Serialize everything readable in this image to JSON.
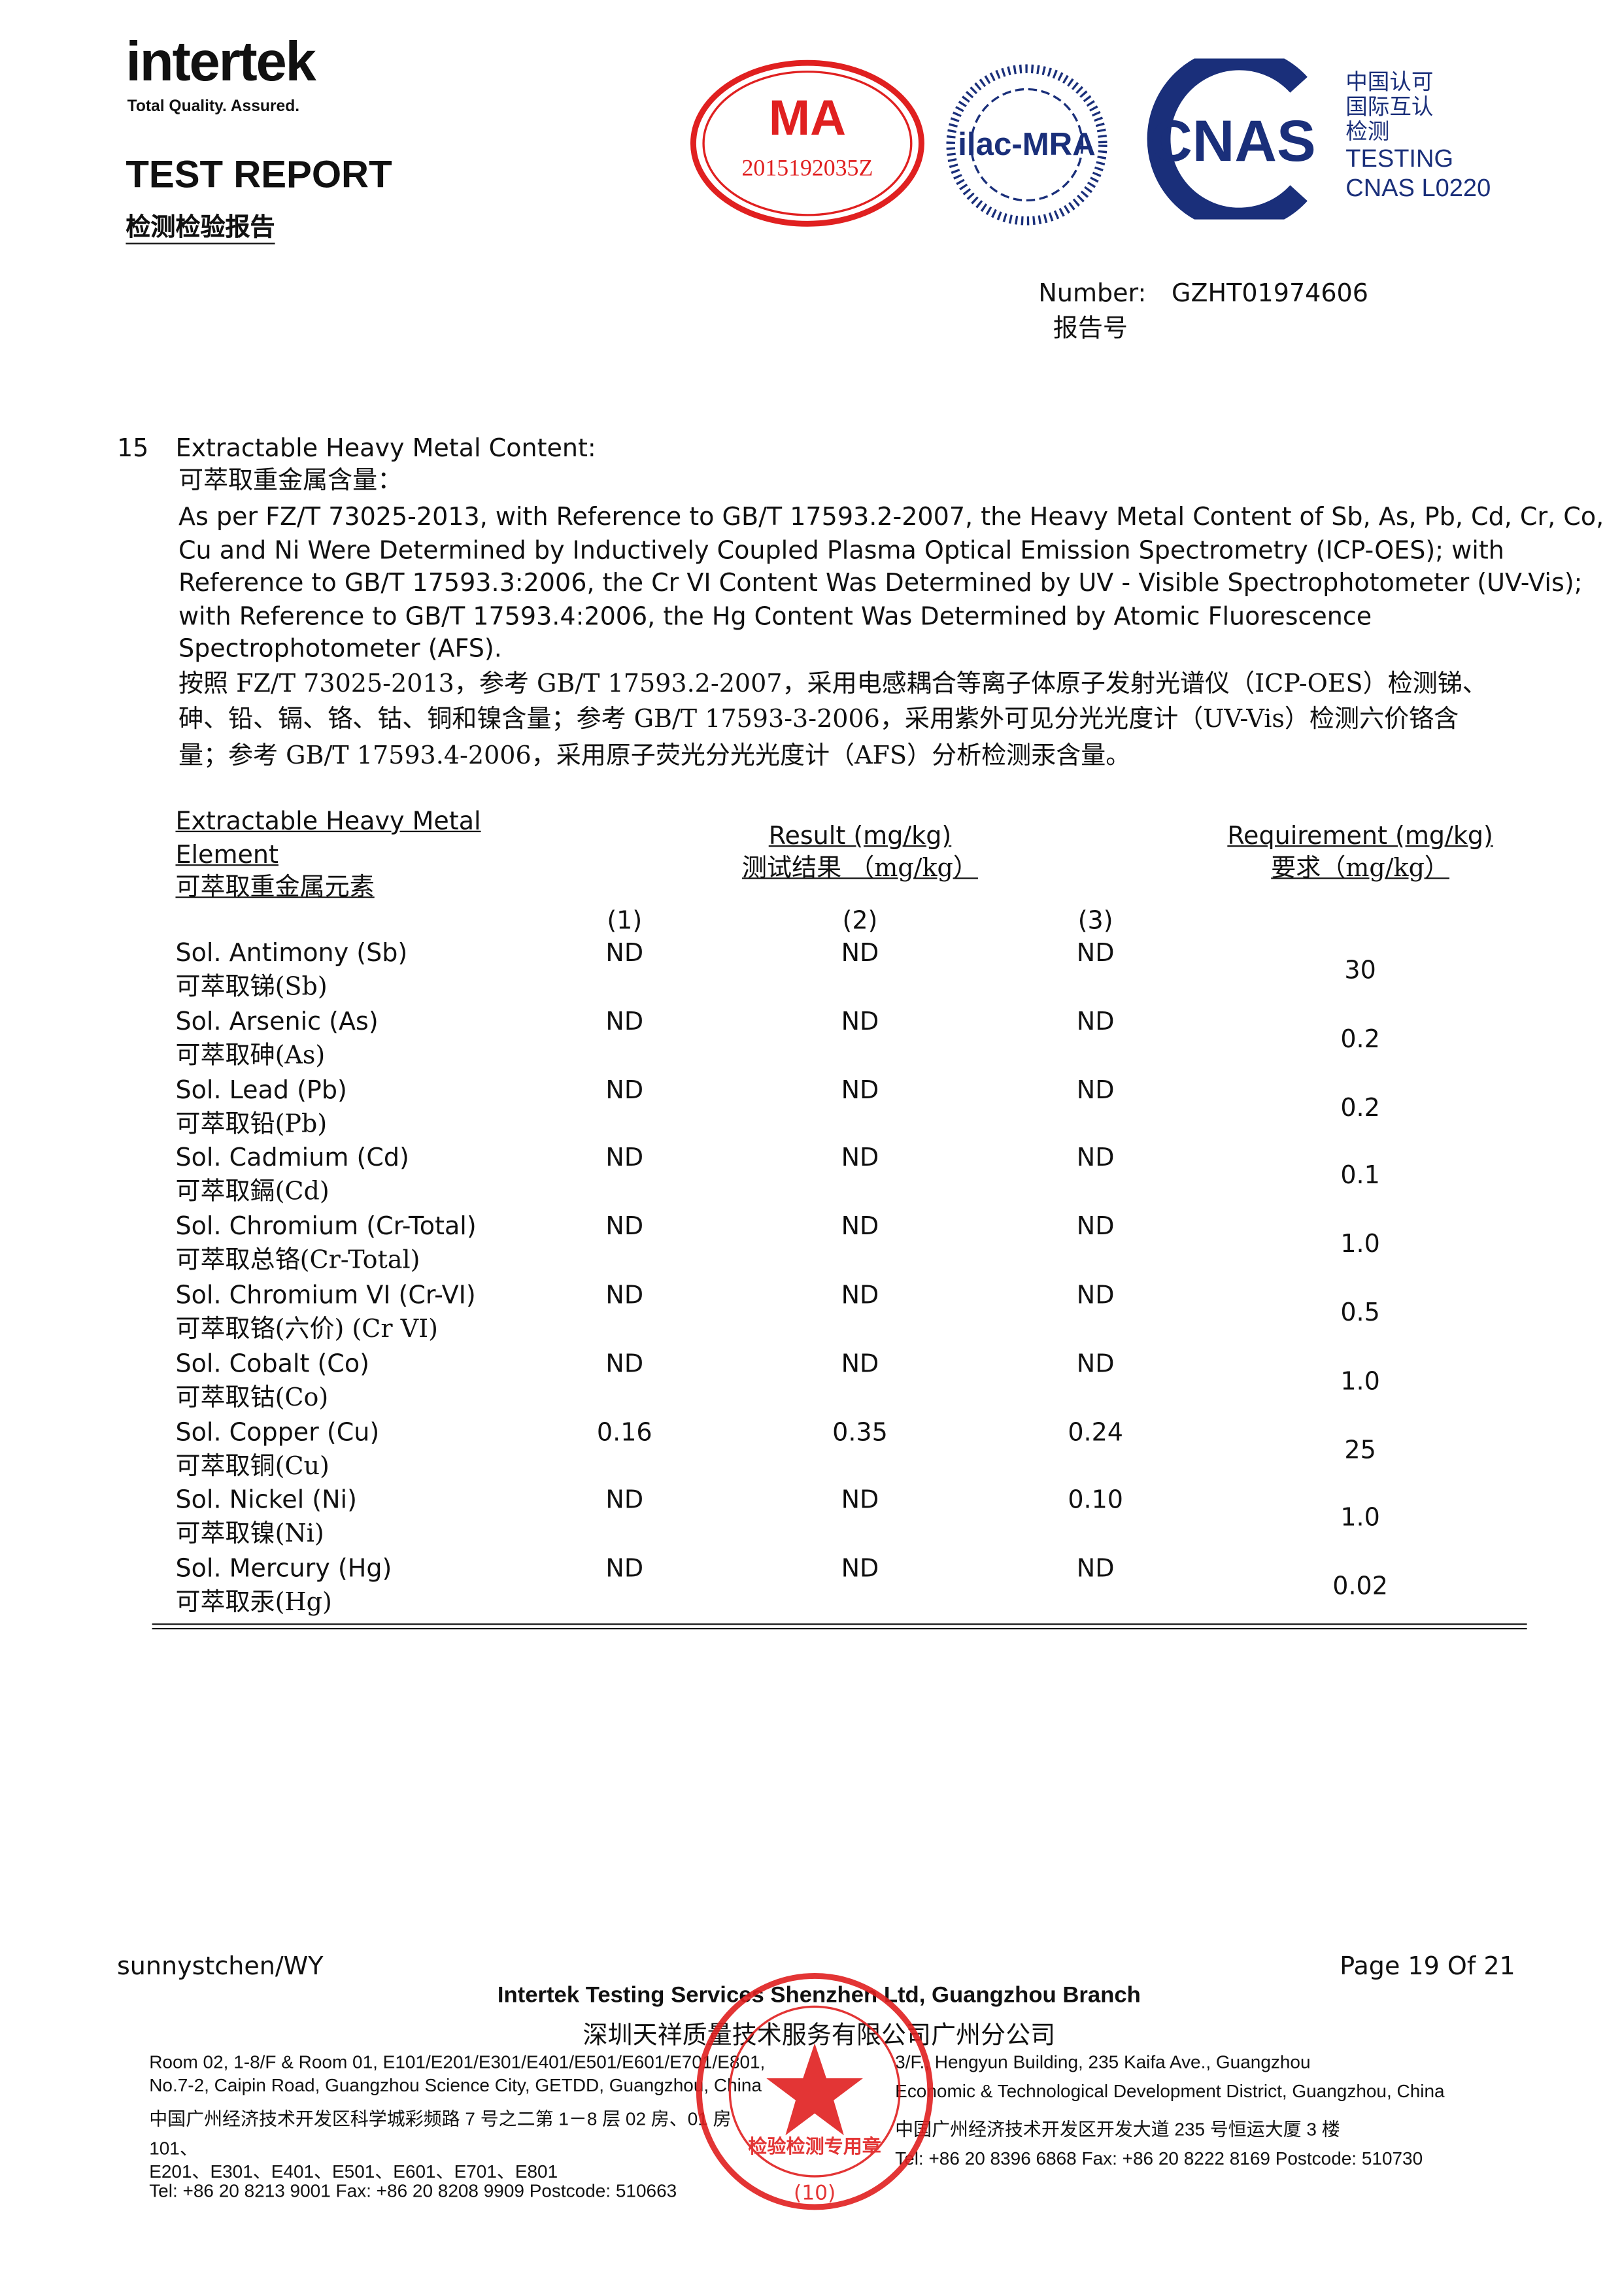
{
  "header": {
    "logo": "intertek",
    "tagline": "Total Quality. Assured.",
    "title": "TEST REPORT",
    "title_cn": "检测检验报告",
    "cma_number": "2015192035Z",
    "ilac": "ilac-MRA",
    "cnas": "CNAS",
    "cnas_cn": [
      "中国认可",
      "国际互认",
      "检测"
    ],
    "cnas_testing": "TESTING",
    "cnas_code": "CNAS L0220",
    "number_label": "Number:",
    "number_value": "GZHT01974606",
    "number_label_cn": "报告号"
  },
  "section": {
    "no": "15",
    "title": "Extractable Heavy Metal Content:",
    "title_cn": "可萃取重金属含量：",
    "para_en": [
      "As per FZ/T 73025-2013, with Reference to GB/T 17593.2-2007, the Heavy Metal Content of Sb, As, Pb, Cd, Cr, Co,",
      "Cu and Ni Were Determined by Inductively Coupled Plasma Optical Emission Spectrometry (ICP-OES); with",
      "Reference to GB/T 17593.3:2006, the Cr VI Content Was Determined by UV - Visible Spectrophotometer (UV-Vis);",
      "with Reference to GB/T 17593.4:2006, the Hg Content Was Determined by Atomic Fluorescence",
      "Spectrophotometer (AFS)."
    ],
    "para_cn": [
      "按照 FZ/T 73025-2013，参考 GB/T 17593.2-2007，采用电感耦合等离子体原子发射光谱仪（ICP-OES）检测锑、",
      "砷、铅、镉、铬、钴、铜和镍含量；参考 GB/T 17593-3-2006，采用紫外可见分光光度计（UV-Vis）检测六价铬含",
      "量；参考 GB/T 17593.4-2006，采用原子荧光分光光度计（AFS）分析检测汞含量。"
    ]
  },
  "table": {
    "col_element": [
      "Extractable Heavy Metal",
      "Element",
      "可萃取重金属元素"
    ],
    "col_result": "Result (mg/kg)",
    "col_result_cn": "测试结果 （mg/kg）",
    "col_req": "Requirement (mg/kg)",
    "col_req_cn": "要求（mg/kg）",
    "samples": [
      "(1)",
      "(2)",
      "(3)"
    ],
    "rows": [
      {
        "en": "Sol. Antimony (Sb)",
        "cn": "可萃取锑(Sb)",
        "r": [
          "ND",
          "ND",
          "ND"
        ],
        "req": "30"
      },
      {
        "en": "Sol. Arsenic (As)",
        "cn": "可萃取砷(As)",
        "r": [
          "ND",
          "ND",
          "ND"
        ],
        "req": "0.2"
      },
      {
        "en": "Sol. Lead (Pb)",
        "cn": "可萃取铅(Pb)",
        "r": [
          "ND",
          "ND",
          "ND"
        ],
        "req": "0.2"
      },
      {
        "en": "Sol. Cadmium (Cd)",
        "cn": "可萃取鎘(Cd)",
        "r": [
          "ND",
          "ND",
          "ND"
        ],
        "req": "0.1"
      },
      {
        "en": "Sol. Chromium (Cr-Total)",
        "cn": "可萃取总铬(Cr-Total)",
        "r": [
          "ND",
          "ND",
          "ND"
        ],
        "req": "1.0"
      },
      {
        "en": "Sol. Chromium VI (Cr-VI)",
        "cn": "可萃取铬(六价) (Cr VI)",
        "r": [
          "ND",
          "ND",
          "ND"
        ],
        "req": "0.5"
      },
      {
        "en": "Sol. Cobalt (Co)",
        "cn": "可萃取钴(Co)",
        "r": [
          "ND",
          "ND",
          "ND"
        ],
        "req": "1.0"
      },
      {
        "en": "Sol. Copper (Cu)",
        "cn": "可萃取铜(Cu)",
        "r": [
          "0.16",
          "0.35",
          "0.24"
        ],
        "req": "25"
      },
      {
        "en": "Sol. Nickel (Ni)",
        "cn": "可萃取镍(Ni)",
        "r": [
          "ND",
          "ND",
          "0.10"
        ],
        "req": "1.0"
      },
      {
        "en": "Sol. Mercury (Hg)",
        "cn": "可萃取汞(Hg)",
        "r": [
          "ND",
          "ND",
          "ND"
        ],
        "req": "0.02"
      }
    ]
  },
  "footer": {
    "author": "sunnystchen/WY",
    "page": "Page 19 Of 21",
    "company": "Intertek Testing Services Shenzhen Ltd, Guangzhou Branch",
    "company_cn": "深圳天祥质量技术服务有限公司广州分公司",
    "left": [
      "Room 02, 1-8/F & Room 01, E101/E201/E301/E401/E501/E601/E701/E801,",
      "No.7-2, Caipin Road, Guangzhou Science City, GETDD, Guangzhou, China",
      "中国广州经济技术开发区科学城彩频路 7 号之二第 1－8 层 02 房、01 房",
      "101、",
      "E201、E301、E401、E501、E601、E701、E801",
      "Tel: +86 20 8213 9001 Fax: +86 20 8208 9909 Postcode: 510663"
    ],
    "right": [
      "3/F., Hengyun Building, 235 Kaifa Ave., Guangzhou",
      "Economic & Technological Development District, Guangzhou, China",
      "中国广州经济技术开发区开发大道 235 号恒运大厦 3 楼",
      "Tel: +86 20 8396 6868 Fax: +86 20 8222 8169 Postcode: 510730"
    ],
    "stamp_text": "检验检测专用章",
    "stamp_no": "(10)"
  },
  "colors": {
    "seal_red": "#e02020",
    "cnas_blue": "#1a2f7a",
    "logo_yellow": "#f5c400"
  }
}
